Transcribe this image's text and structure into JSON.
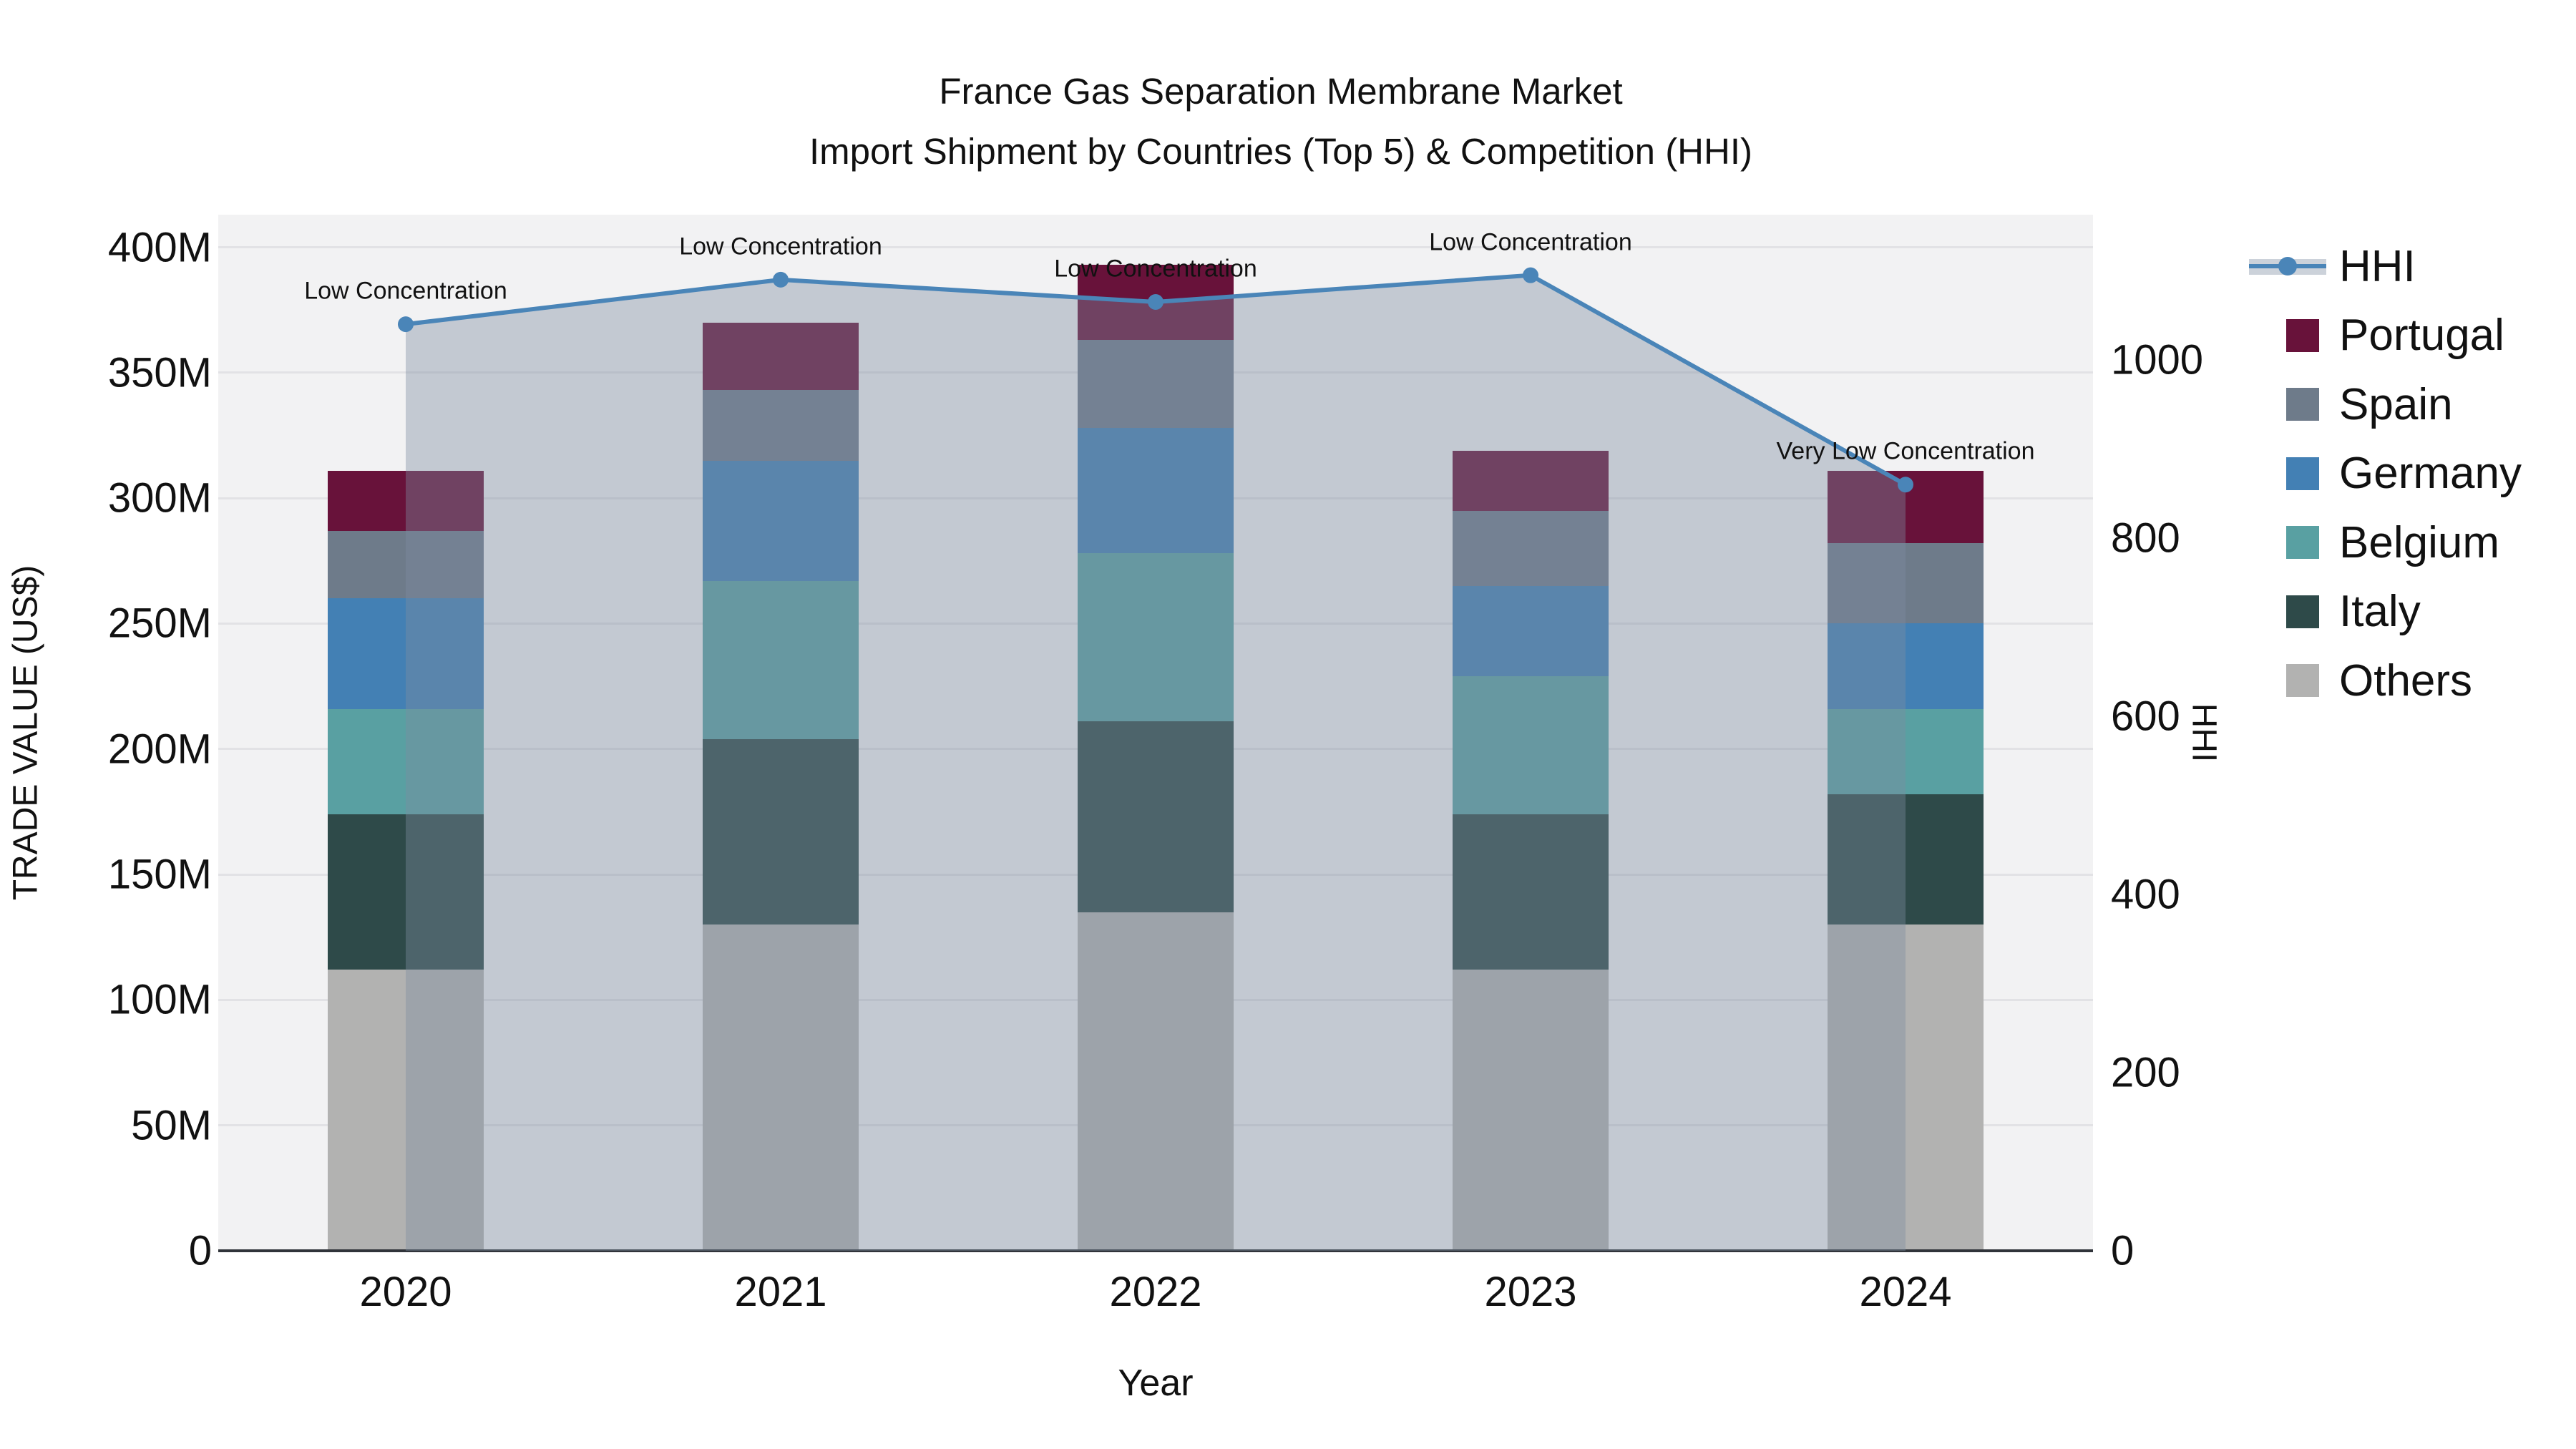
{
  "title": {
    "line1": "France Gas Separation Membrane Market",
    "line2": "Import Shipment by Countries (Top 5) & Competition (HHI)"
  },
  "chart_data": {
    "type": "bar",
    "subtype": "stacked-bars-with-line",
    "categories": [
      "2020",
      "2021",
      "2022",
      "2023",
      "2024"
    ],
    "series": [
      {
        "name": "Others",
        "color": "#b2b2b1",
        "values": [
          112,
          130,
          135,
          112,
          130
        ]
      },
      {
        "name": "Italy",
        "color": "#2e4a49",
        "values": [
          62,
          74,
          76,
          62,
          52
        ]
      },
      {
        "name": "Belgium",
        "color": "#59a0a2",
        "values": [
          42,
          63,
          67,
          55,
          34
        ]
      },
      {
        "name": "Germany",
        "color": "#4380b4",
        "values": [
          44,
          48,
          50,
          36,
          34
        ]
      },
      {
        "name": "Spain",
        "color": "#6e7b8a",
        "values": [
          27,
          28,
          35,
          30,
          32
        ]
      },
      {
        "name": "Portugal",
        "color": "#68123a",
        "values": [
          24,
          27,
          30,
          24,
          29
        ]
      }
    ],
    "stack_totals": [
      311,
      370,
      393,
      319,
      311
    ],
    "line_series": {
      "name": "HHI",
      "color": "#4a85b8",
      "fill_color": "rgba(125,140,160,0.40)",
      "axis": "right",
      "values": [
        1040,
        1090,
        1065,
        1095,
        860
      ]
    },
    "annotations": [
      {
        "category": "2020",
        "text": "Low Concentration"
      },
      {
        "category": "2021",
        "text": "Low Concentration"
      },
      {
        "category": "2022",
        "text": "Low Concentration"
      },
      {
        "category": "2023",
        "text": "Low Concentration"
      },
      {
        "category": "2024",
        "text": "Very Low Concentration"
      }
    ],
    "left_axis": {
      "label": "TRADE VALUE (US$)",
      "tick_values": [
        0,
        50,
        100,
        150,
        200,
        250,
        300,
        350,
        400
      ],
      "tick_labels": [
        "0",
        "50M",
        "100M",
        "150M",
        "200M",
        "250M",
        "300M",
        "350M",
        "400M"
      ],
      "range": [
        0,
        413
      ]
    },
    "right_axis": {
      "label": "HHI",
      "tick_values": [
        0,
        200,
        400,
        600,
        800,
        1000
      ],
      "tick_labels": [
        "0",
        "200",
        "400",
        "600",
        "800",
        "1000"
      ],
      "range": [
        0,
        1163
      ]
    },
    "x_axis": {
      "label": "Year"
    },
    "legend_order": [
      "HHI",
      "Portugal",
      "Spain",
      "Germany",
      "Belgium",
      "Italy",
      "Others"
    ],
    "grid": true,
    "plot_background": "#f2f2f3"
  },
  "colors": {
    "figure_background": "#ffffff",
    "gridline": "#e2e2e5",
    "axis_line": "#30343a",
    "text": "#111111"
  }
}
